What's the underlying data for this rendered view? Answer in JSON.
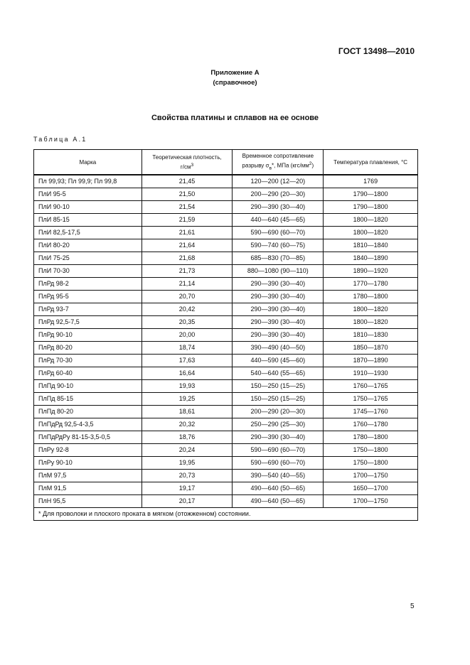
{
  "header": {
    "doc_code": "ГОСТ 13498—2010",
    "appendix": "Приложение А",
    "appendix_type": "(справочное)"
  },
  "heading": "Свойства платины и сплавов на ее основе",
  "table_caption": "Таблица А.1",
  "table": {
    "columns": [
      "Марка",
      "Теоретическая плотность, г/см³",
      "Временное сопротивление разрыву σв*, МПа (кгс/мм²)",
      "Температура плавления, °С"
    ],
    "rows": [
      [
        "Пл 99,93; Пл 99,9; Пл 99,8",
        "21,45",
        "120—200 (12—20)",
        "1769"
      ],
      [
        "ПлИ 95-5",
        "21,50",
        "200—290 (20—30)",
        "1790—1800"
      ],
      [
        "ПлИ 90-10",
        "21,54",
        "290—390 (30—40)",
        "1790—1800"
      ],
      [
        "ПлИ 85-15",
        "21,59",
        "440—640 (45—65)",
        "1800—1820"
      ],
      [
        "ПлИ 82,5-17,5",
        "21,61",
        "590—690 (60—70)",
        "1800—1820"
      ],
      [
        "ПлИ 80-20",
        "21,64",
        "590—740 (60—75)",
        "1810—1840"
      ],
      [
        "ПлИ 75-25",
        "21,68",
        "685—830 (70—85)",
        "1840—1890"
      ],
      [
        "ПлИ 70-30",
        "21,73",
        "880—1080 (90—110)",
        "1890—1920"
      ],
      [
        "ПлРд 98-2",
        "21,14",
        "290—390 (30—40)",
        "1770—1780"
      ],
      [
        "ПлРд 95-5",
        "20,70",
        "290—390 (30—40)",
        "1780—1800"
      ],
      [
        "ПлРд 93-7",
        "20,42",
        "290—390 (30—40)",
        "1800—1820"
      ],
      [
        "ПлРд 92,5-7,5",
        "20,35",
        "290—390 (30—40)",
        "1800—1820"
      ],
      [
        "ПлРд 90-10",
        "20,00",
        "290—390 (30—40)",
        "1810—1830"
      ],
      [
        "ПлРд 80-20",
        "18,74",
        "390—490 (40—50)",
        "1850—1870"
      ],
      [
        "ПлРд 70-30",
        "17,63",
        "440—590 (45—60)",
        "1870—1890"
      ],
      [
        "ПлРд 60-40",
        "16,64",
        "540—640 (55—65)",
        "1910—1930"
      ],
      [
        "ПлПд 90-10",
        "19,93",
        "150—250 (15—25)",
        "1760—1765"
      ],
      [
        "ПлПд 85-15",
        "19,25",
        "150—250 (15—25)",
        "1750—1765"
      ],
      [
        "ПлПд 80-20",
        "18,61",
        "200—290 (20—30)",
        "1745—1760"
      ],
      [
        "ПлПдРд 92,5-4-3,5",
        "20,32",
        "250—290 (25—30)",
        "1760—1780"
      ],
      [
        "ПлПдРдРу 81-15-3,5-0,5",
        "18,76",
        "290—390 (30—40)",
        "1780—1800"
      ],
      [
        "ПлРу 92-8",
        "20,24",
        "590—690 (60—70)",
        "1750—1800"
      ],
      [
        "ПлРу 90-10",
        "19,95",
        "590—690 (60—70)",
        "1750—1800"
      ],
      [
        "ПлМ 97,5",
        "20,73",
        "390—540 (40—55)",
        "1700—1750"
      ],
      [
        "ПлМ 91,5",
        "19,17",
        "490—640 (50—65)",
        "1650—1700"
      ],
      [
        "ПлН 95,5",
        "20,17",
        "490—640 (50—65)",
        "1700—1750"
      ]
    ],
    "footnote": "* Для проволоки и плоского проката в мягком (отожженном) состоянии."
  },
  "page_number": "5"
}
